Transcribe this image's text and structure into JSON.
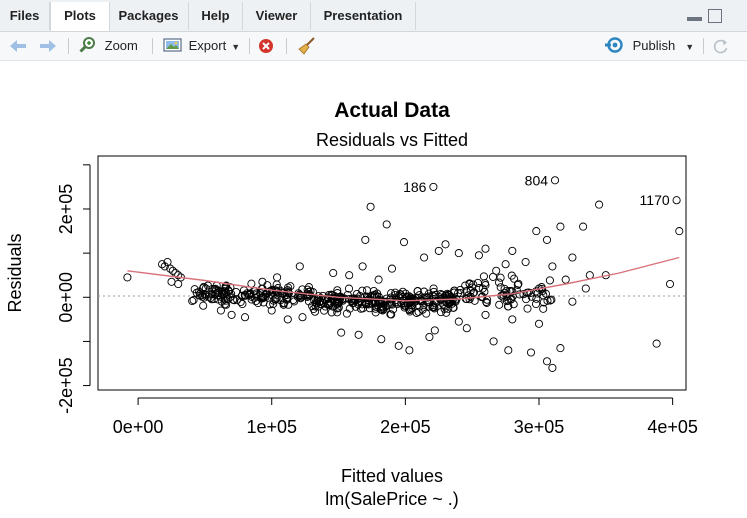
{
  "tabs": [
    {
      "label": "Files",
      "active": false
    },
    {
      "label": "Plots",
      "active": true
    },
    {
      "label": "Packages",
      "active": false
    },
    {
      "label": "Help",
      "active": false
    },
    {
      "label": "Viewer",
      "active": false
    },
    {
      "label": "Presentation",
      "active": false
    }
  ],
  "toolbar": {
    "zoom_label": "Zoom",
    "export_label": "Export",
    "publish_label": "Publish"
  },
  "chart_data": {
    "type": "scatter",
    "title": "Actual Data",
    "subtitle": "Residuals vs Fitted",
    "xlabel": "Fitted values",
    "xlabel2": "lm(SalePrice ~ .)",
    "ylabel": "Residuals",
    "xlim": [
      -30000,
      410000
    ],
    "ylim": [
      -210000,
      320000
    ],
    "x_ticks": [
      {
        "value": 0,
        "label": "0e+00"
      },
      {
        "value": 100000,
        "label": "1e+05"
      },
      {
        "value": 200000,
        "label": "2e+05"
      },
      {
        "value": 300000,
        "label": "3e+05"
      },
      {
        "value": 400000,
        "label": "4e+05"
      }
    ],
    "y_ticks": [
      {
        "value": -200000,
        "label": "-2e+05"
      },
      {
        "value": 0,
        "label": "0e+00"
      },
      {
        "value": 200000,
        "label": "2e+05"
      }
    ],
    "labeled_points": [
      {
        "label": "186",
        "x": 221000,
        "y": 250000
      },
      {
        "label": "804",
        "x": 312000,
        "y": 265000
      },
      {
        "label": "1170",
        "x": 403000,
        "y": 220000
      }
    ],
    "outlier_points": [
      [
        -8000,
        45000
      ],
      [
        174000,
        205000
      ],
      [
        186000,
        165000
      ],
      [
        170000,
        130000
      ],
      [
        345000,
        210000
      ],
      [
        333000,
        160000
      ],
      [
        306000,
        130000
      ],
      [
        298000,
        150000
      ],
      [
        316000,
        160000
      ],
      [
        405000,
        150000
      ],
      [
        398000,
        30000
      ],
      [
        388000,
        -105000
      ],
      [
        310000,
        -160000
      ],
      [
        306000,
        -145000
      ],
      [
        294000,
        -125000
      ],
      [
        316000,
        -115000
      ],
      [
        277000,
        -120000
      ],
      [
        266000,
        -100000
      ],
      [
        246000,
        -70000
      ],
      [
        222000,
        -75000
      ],
      [
        203000,
        -120000
      ],
      [
        195000,
        -110000
      ],
      [
        280000,
        105000
      ],
      [
        260000,
        110000
      ],
      [
        230000,
        120000
      ],
      [
        214000,
        90000
      ],
      [
        199000,
        125000
      ],
      [
        190000,
        65000
      ],
      [
        325000,
        90000
      ],
      [
        338000,
        50000
      ],
      [
        350000,
        50000
      ],
      [
        320000,
        40000
      ],
      [
        310000,
        70000
      ],
      [
        290000,
        80000
      ],
      [
        275000,
        75000
      ],
      [
        255000,
        95000
      ],
      [
        240000,
        100000
      ],
      [
        225000,
        105000
      ],
      [
        268000,
        60000
      ],
      [
        300000,
        20000
      ],
      [
        335000,
        20000
      ],
      [
        280000,
        -50000
      ],
      [
        300000,
        -60000
      ],
      [
        325000,
        -10000
      ],
      [
        260000,
        -40000
      ],
      [
        240000,
        -55000
      ],
      [
        218000,
        -90000
      ],
      [
        182000,
        -95000
      ],
      [
        165000,
        -85000
      ],
      [
        152000,
        -80000
      ],
      [
        112000,
        -50000
      ],
      [
        123000,
        -45000
      ],
      [
        100000,
        -30000
      ],
      [
        80000,
        -45000
      ],
      [
        70000,
        -40000
      ],
      [
        62000,
        -30000
      ],
      [
        93000,
        35000
      ],
      [
        104000,
        45000
      ],
      [
        121000,
        70000
      ],
      [
        146000,
        55000
      ],
      [
        158000,
        50000
      ],
      [
        168000,
        70000
      ],
      [
        180000,
        40000
      ]
    ],
    "cluster_points": [
      [
        18000,
        75000
      ],
      [
        20000,
        70000
      ],
      [
        22000,
        80000
      ],
      [
        24000,
        65000
      ],
      [
        26000,
        60000
      ],
      [
        28000,
        55000
      ],
      [
        30000,
        50000
      ],
      [
        32000,
        45000
      ],
      [
        25000,
        35000
      ],
      [
        30000,
        30000
      ]
    ],
    "bulk": [
      {
        "x0": 40000,
        "x1": 130000,
        "y_center": 5000,
        "y_spread": 32000,
        "count": 160
      },
      {
        "x0": 130000,
        "x1": 240000,
        "y_center": -8000,
        "y_spread": 36000,
        "count": 270
      },
      {
        "x0": 240000,
        "x1": 310000,
        "y_center": 10000,
        "y_spread": 50000,
        "count": 80
      }
    ],
    "smooth_line": [
      [
        -8000,
        60000
      ],
      [
        50000,
        38000
      ],
      [
        100000,
        16000
      ],
      [
        150000,
        0
      ],
      [
        200000,
        -8000
      ],
      [
        240000,
        -4000
      ],
      [
        280000,
        8000
      ],
      [
        320000,
        30000
      ],
      [
        360000,
        55000
      ],
      [
        405000,
        90000
      ]
    ],
    "grid": false
  }
}
